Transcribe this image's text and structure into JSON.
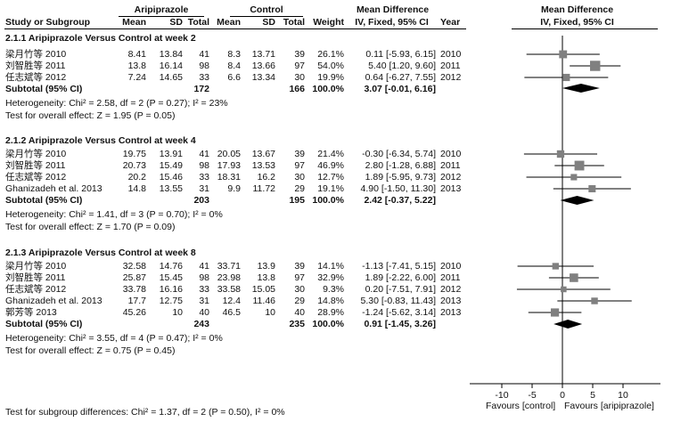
{
  "header": {
    "group_exp": "Aripiprazole",
    "group_ctl": "Control",
    "md_col": "Mean Difference",
    "md_sub": "IV, Fixed, 95% CI",
    "year": "Year",
    "plot_title": "Mean Difference",
    "plot_sub": "IV, Fixed, 95% CI",
    "col_study": "Study or Subgroup",
    "col_mean1": "Mean",
    "col_sd1": "SD",
    "col_total1": "Total",
    "col_mean2": "Mean",
    "col_sd2": "SD",
    "col_total2": "Total",
    "col_weight": "Weight"
  },
  "groups": [
    {
      "title": "2.1.1 Aripiprazole Versus Control at week 2",
      "studies": [
        {
          "name": "梁月竹等 2010",
          "mean1": "8.41",
          "sd1": "13.84",
          "n1": "41",
          "mean2": "8.3",
          "sd2": "13.71",
          "n2": "39",
          "weight": "26.1%",
          "ci": "0.11 [-5.93, 6.15]",
          "year": "2010"
        },
        {
          "name": "刘智胜等 2011",
          "mean1": "13.8",
          "sd1": "16.14",
          "n1": "98",
          "mean2": "8.4",
          "sd2": "13.66",
          "n2": "97",
          "weight": "54.0%",
          "ci": "5.40 [1.20, 9.60]",
          "year": "2011"
        },
        {
          "name": "任志斌等 2012",
          "mean1": "7.24",
          "sd1": "14.65",
          "n1": "33",
          "mean2": "6.6",
          "sd2": "13.34",
          "n2": "30",
          "weight": "19.9%",
          "ci": "0.64 [-6.27, 7.55]",
          "year": "2012"
        }
      ],
      "subtotal": {
        "label": "Subtotal (95% CI)",
        "n1": "172",
        "n2": "166",
        "weight": "100.0%",
        "ci": "3.07 [-0.01, 6.16]"
      },
      "heterogeneity": "Heterogeneity: Chi² = 2.58, df = 2 (P = 0.27); I² = 23%",
      "overall": "Test for overall effect: Z = 1.95 (P = 0.05)"
    },
    {
      "title": "2.1.2 Aripiprazole Versus Control at week 4",
      "studies": [
        {
          "name": "梁月竹等 2010",
          "mean1": "19.75",
          "sd1": "13.91",
          "n1": "41",
          "mean2": "20.05",
          "sd2": "13.67",
          "n2": "39",
          "weight": "21.4%",
          "ci": "-0.30 [-6.34, 5.74]",
          "year": "2010"
        },
        {
          "name": "刘智胜等 2011",
          "mean1": "20.73",
          "sd1": "15.49",
          "n1": "98",
          "mean2": "17.93",
          "sd2": "13.53",
          "n2": "97",
          "weight": "46.9%",
          "ci": "2.80 [-1.28, 6.88]",
          "year": "2011"
        },
        {
          "name": "任志斌等 2012",
          "mean1": "20.2",
          "sd1": "15.46",
          "n1": "33",
          "mean2": "18.31",
          "sd2": "16.2",
          "n2": "30",
          "weight": "12.7%",
          "ci": "1.89 [-5.95, 9.73]",
          "year": "2012"
        },
        {
          "name": "Ghanizadeh et al. 2013",
          "mean1": "14.8",
          "sd1": "13.55",
          "n1": "31",
          "mean2": "9.9",
          "sd2": "11.72",
          "n2": "29",
          "weight": "19.1%",
          "ci": "4.90 [-1.50, 11.30]",
          "year": "2013"
        }
      ],
      "subtotal": {
        "label": "Subtotal (95% CI)",
        "n1": "203",
        "n2": "195",
        "weight": "100.0%",
        "ci": "2.42 [-0.37, 5.22]"
      },
      "heterogeneity": "Heterogeneity: Chi² = 1.41, df = 3 (P = 0.70); I² = 0%",
      "overall": "Test for overall effect: Z = 1.70 (P = 0.09)"
    },
    {
      "title": "2.1.3 Aripiprazole Versus Control at week 8",
      "studies": [
        {
          "name": "梁月竹等 2010",
          "mean1": "32.58",
          "sd1": "14.76",
          "n1": "41",
          "mean2": "33.71",
          "sd2": "13.9",
          "n2": "39",
          "weight": "14.1%",
          "ci": "-1.13 [-7.41, 5.15]",
          "year": "2010"
        },
        {
          "name": "刘智胜等 2011",
          "mean1": "25.87",
          "sd1": "15.45",
          "n1": "98",
          "mean2": "23.98",
          "sd2": "13.8",
          "n2": "97",
          "weight": "32.9%",
          "ci": "1.89 [-2.22, 6.00]",
          "year": "2011"
        },
        {
          "name": "任志斌等 2012",
          "mean1": "33.78",
          "sd1": "16.16",
          "n1": "33",
          "mean2": "33.58",
          "sd2": "15.05",
          "n2": "30",
          "weight": "9.3%",
          "ci": "0.20 [-7.51, 7.91]",
          "year": "2012"
        },
        {
          "name": "Ghanizadeh et al. 2013",
          "mean1": "17.7",
          "sd1": "12.75",
          "n1": "31",
          "mean2": "12.4",
          "sd2": "11.46",
          "n2": "29",
          "weight": "14.8%",
          "ci": "5.30 [-0.83, 11.43]",
          "year": "2013"
        },
        {
          "name": "郭芳等 2013",
          "mean1": "45.26",
          "sd1": "10",
          "n1": "40",
          "mean2": "46.5",
          "sd2": "10",
          "n2": "40",
          "weight": "28.9%",
          "ci": "-1.24 [-5.62, 3.14]",
          "year": "2013"
        }
      ],
      "subtotal": {
        "label": "Subtotal (95% CI)",
        "n1": "243",
        "n2": "235",
        "weight": "100.0%",
        "ci": "0.91 [-1.45, 3.26]"
      },
      "heterogeneity": "Heterogeneity: Chi² = 3.55, df = 4 (P = 0.47); I² = 0%",
      "overall": "Test for overall effect: Z = 0.75 (P = 0.45)"
    }
  ],
  "footer": {
    "subgroup_test": "Test for subgroup differences: Chi² = 1.37, df = 2 (P = 0.50), I² = 0%",
    "favours_left": "Favours [control]",
    "favours_right": "Favours [aripiprazole]"
  },
  "chart_data": {
    "type": "forest",
    "x_ticks": [
      -10,
      -5,
      0,
      5,
      10
    ],
    "xlim": [
      -15,
      15
    ],
    "colors": {
      "marker": "#808080",
      "diamond": "#000000",
      "line": "#000000"
    },
    "groups": [
      {
        "studies": [
          {
            "est": 0.11,
            "lo": -5.93,
            "hi": 6.15,
            "weight": 26.1
          },
          {
            "est": 5.4,
            "lo": 1.2,
            "hi": 9.6,
            "weight": 54.0
          },
          {
            "est": 0.64,
            "lo": -6.27,
            "hi": 7.55,
            "weight": 19.9
          }
        ],
        "pooled": {
          "est": 3.07,
          "lo": -0.01,
          "hi": 6.16
        }
      },
      {
        "studies": [
          {
            "est": -0.3,
            "lo": -6.34,
            "hi": 5.74,
            "weight": 21.4
          },
          {
            "est": 2.8,
            "lo": -1.28,
            "hi": 6.88,
            "weight": 46.9
          },
          {
            "est": 1.89,
            "lo": -5.95,
            "hi": 9.73,
            "weight": 12.7
          },
          {
            "est": 4.9,
            "lo": -1.5,
            "hi": 11.3,
            "weight": 19.1
          }
        ],
        "pooled": {
          "est": 2.42,
          "lo": -0.37,
          "hi": 5.22
        }
      },
      {
        "studies": [
          {
            "est": -1.13,
            "lo": -7.41,
            "hi": 5.15,
            "weight": 14.1
          },
          {
            "est": 1.89,
            "lo": -2.22,
            "hi": 6.0,
            "weight": 32.9
          },
          {
            "est": 0.2,
            "lo": -7.51,
            "hi": 7.91,
            "weight": 9.3
          },
          {
            "est": 5.3,
            "lo": -0.83,
            "hi": 11.43,
            "weight": 14.8
          },
          {
            "est": -1.24,
            "lo": -5.62,
            "hi": 3.14,
            "weight": 28.9
          }
        ],
        "pooled": {
          "est": 0.91,
          "lo": -1.45,
          "hi": 3.26
        }
      }
    ]
  }
}
